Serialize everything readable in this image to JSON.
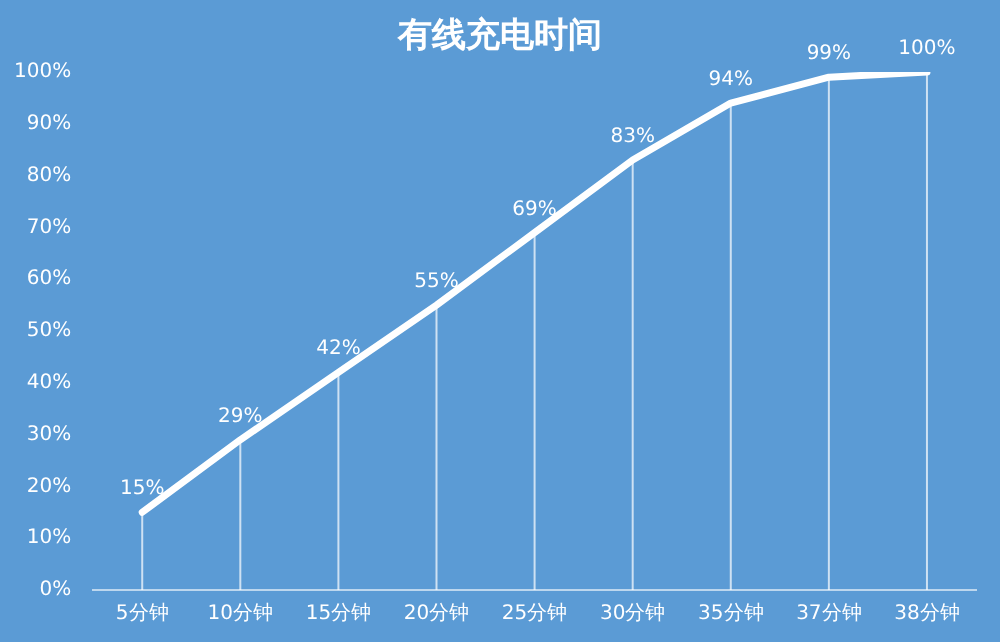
{
  "chart_data": {
    "type": "line",
    "title": "有线充电时间",
    "categories": [
      "5分钟",
      "10分钟",
      "15分钟",
      "20分钟",
      "25分钟",
      "30分钟",
      "35分钟",
      "37分钟",
      "38分钟"
    ],
    "values": [
      15,
      29,
      42,
      55,
      69,
      83,
      94,
      99,
      100
    ],
    "value_labels": [
      "15%",
      "29%",
      "42%",
      "55%",
      "69%",
      "83%",
      "94%",
      "99%",
      "100%"
    ],
    "color": "#ffffff",
    "marker": "none",
    "line_style": "solid",
    "grid": "x",
    "legend": false,
    "ylim": [
      0,
      100
    ],
    "yticks": [
      {
        "value": 0,
        "label": "0%"
      },
      {
        "value": 10,
        "label": "10%"
      },
      {
        "value": 20,
        "label": "20%"
      },
      {
        "value": 30,
        "label": "30%"
      },
      {
        "value": 40,
        "label": "40%"
      },
      {
        "value": 50,
        "label": "50%"
      },
      {
        "value": 60,
        "label": "60%"
      },
      {
        "value": 70,
        "label": "70%"
      },
      {
        "value": 80,
        "label": "80%"
      },
      {
        "value": 90,
        "label": "90%"
      },
      {
        "value": 100,
        "label": "100%"
      }
    ]
  }
}
